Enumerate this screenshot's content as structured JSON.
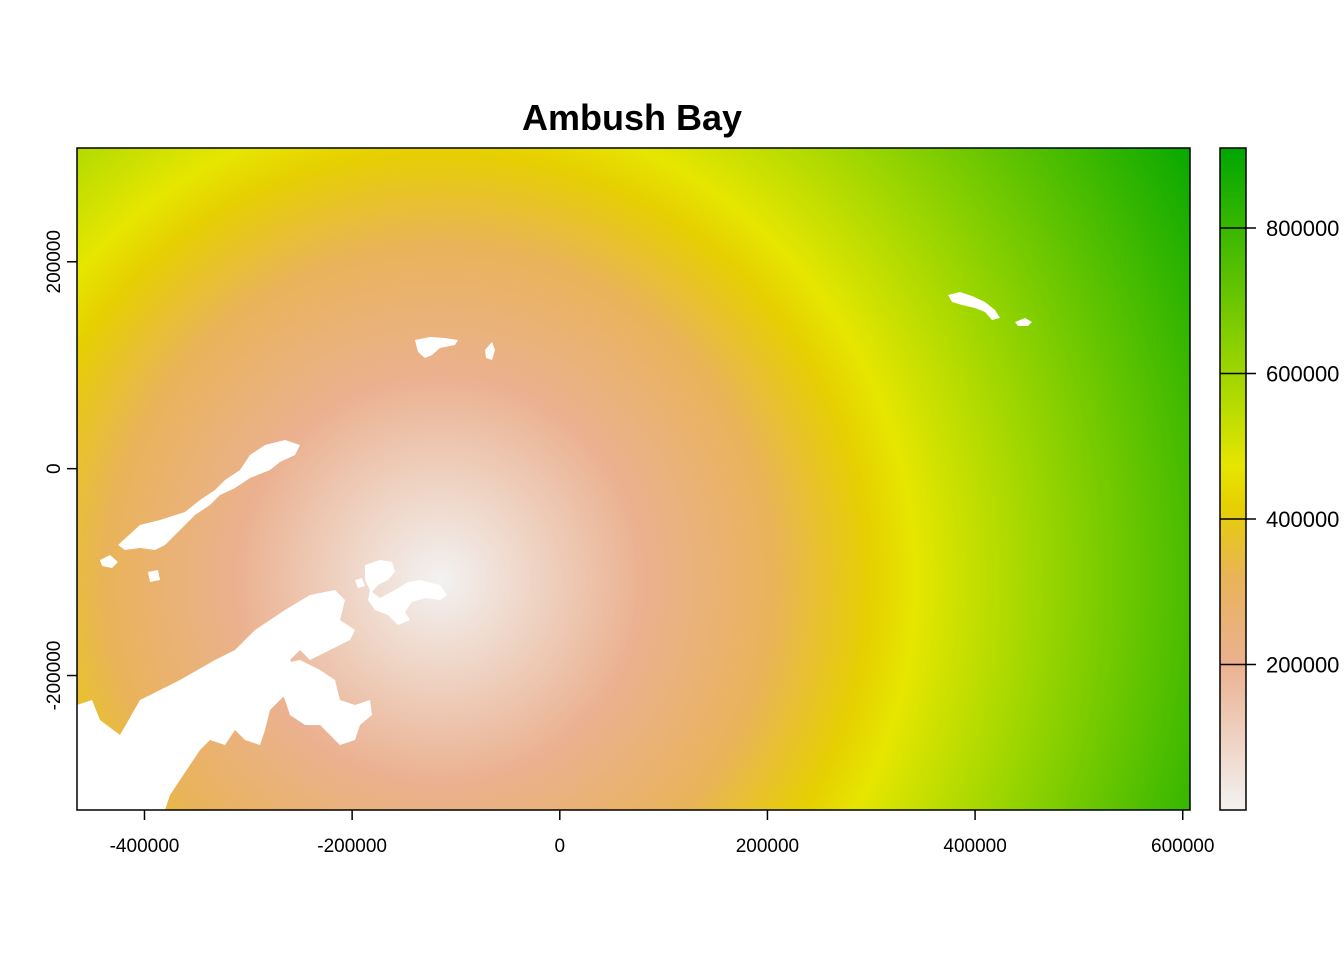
{
  "chart_data": {
    "type": "heatmap",
    "title": "Ambush Bay",
    "xlabel": "",
    "ylabel": "",
    "xlim": [
      -465000,
      607000
    ],
    "ylim": [
      -330000,
      310000
    ],
    "x_ticks": [
      {
        "value": -400000,
        "label": "-400000"
      },
      {
        "value": -200000,
        "label": "-200000"
      },
      {
        "value": 0,
        "label": "0"
      },
      {
        "value": 200000,
        "label": "200000"
      },
      {
        "value": 400000,
        "label": "400000"
      },
      {
        "value": 600000,
        "label": "600000"
      }
    ],
    "y_ticks": [
      {
        "value": -200000,
        "label": "-200000"
      },
      {
        "value": 0,
        "label": "0"
      },
      {
        "value": 200000,
        "label": "200000"
      }
    ],
    "legend": {
      "range": [
        0,
        910000
      ],
      "ticks": [
        {
          "value": 200000,
          "label": "200000"
        },
        {
          "value": 400000,
          "label": "400000"
        },
        {
          "value": 600000,
          "label": "600000"
        },
        {
          "value": 800000,
          "label": "800000"
        }
      ],
      "colors": [
        "#f2f2f2",
        "#ebb190",
        "#e6c333",
        "#e6e600",
        "#9ed600",
        "#00a600"
      ]
    },
    "color_stops": [
      {
        "value": 0,
        "color": "#f2f2f2"
      },
      {
        "value": 200000,
        "color": "#ebb190"
      },
      {
        "value": 320000,
        "color": "#e9b35a"
      },
      {
        "value": 420000,
        "color": "#e6d000"
      },
      {
        "value": 470000,
        "color": "#e6e600"
      },
      {
        "value": 600000,
        "color": "#9ed600"
      },
      {
        "value": 910000,
        "color": "#00a600"
      }
    ],
    "grid": false
  }
}
